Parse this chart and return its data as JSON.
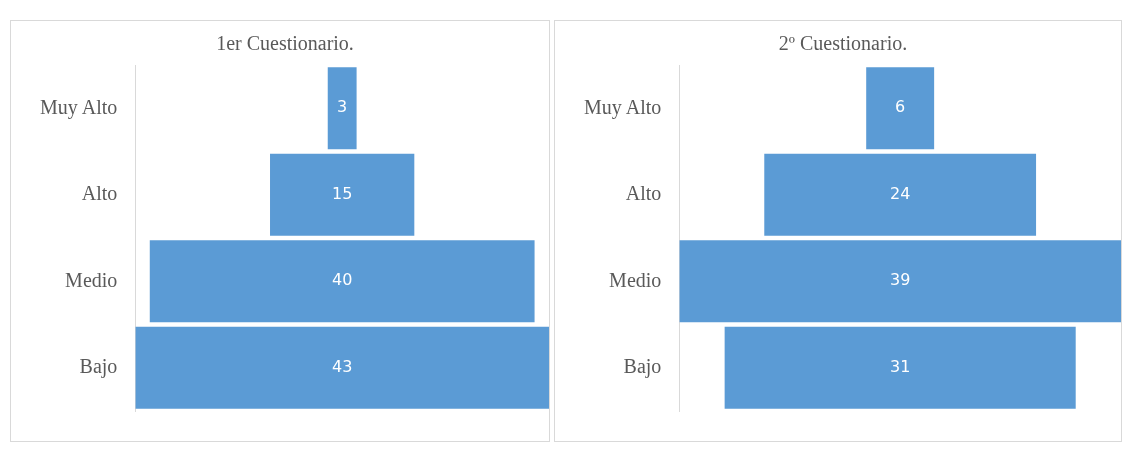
{
  "chart_data": [
    {
      "type": "other",
      "title": "1er Cuestionario.",
      "categories": [
        "Muy Alto",
        "Alto",
        "Medio",
        "Bajo"
      ],
      "values": [
        3,
        15,
        40,
        43
      ],
      "color": "#5b9bd5",
      "data_labels": true,
      "legend": false
    },
    {
      "type": "other",
      "title": "2º Cuestionario.",
      "categories": [
        "Muy Alto",
        "Alto",
        "Medio",
        "Bajo"
      ],
      "values": [
        6,
        24,
        39,
        31
      ],
      "color": "#5b9bd5",
      "data_labels": true,
      "legend": false
    }
  ]
}
